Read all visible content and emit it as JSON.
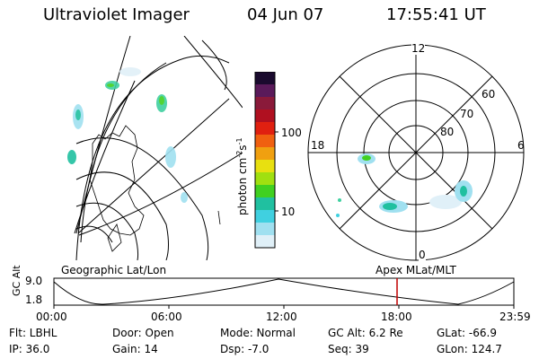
{
  "header": {
    "title": "Ultraviolet Imager",
    "date": "04 Jun 07",
    "time": "17:55:41 UT"
  },
  "colorbar": {
    "label": "photon cm",
    "label_exp1": "-2",
    "label_mid": "s",
    "label_exp2": "-1",
    "ticks": [
      "100",
      "10"
    ],
    "colors": [
      "#1a0a2e",
      "#5a1a5a",
      "#8a1a3a",
      "#b01020",
      "#e02010",
      "#f06010",
      "#f0a010",
      "#e8e010",
      "#a0e010",
      "#40d020",
      "#20c0a0",
      "#40d0e0",
      "#a0e0f0",
      "#e0f0f8"
    ]
  },
  "left_panel": {
    "label": "Geographic Lat/Lon"
  },
  "polar_panel": {
    "label": "Apex MLat/MLT",
    "mlt_labels": {
      "top": "12",
      "left": "18",
      "right": "6",
      "bottom": "0"
    },
    "lat_labels": [
      "60",
      "70",
      "80"
    ]
  },
  "altitude_plot": {
    "ylabel": "GC Alt",
    "y_ticks": [
      "9.0",
      "1.8"
    ],
    "x_ticks": [
      "00:00",
      "06:00",
      "12:00",
      "18:00",
      "23:59"
    ]
  },
  "info": {
    "flt": "Flt: LBHL",
    "ip": "IP: 36.0",
    "door": "Door: Open",
    "gain": "Gain: 14",
    "mode": "Mode: Normal",
    "dsp": "Dsp:    -7.0",
    "gc_alt": "GC Alt: 6.2 Re",
    "seq": "Seq: 39",
    "glat": "GLat: -66.9",
    "glon": "GLon: 124.7"
  }
}
